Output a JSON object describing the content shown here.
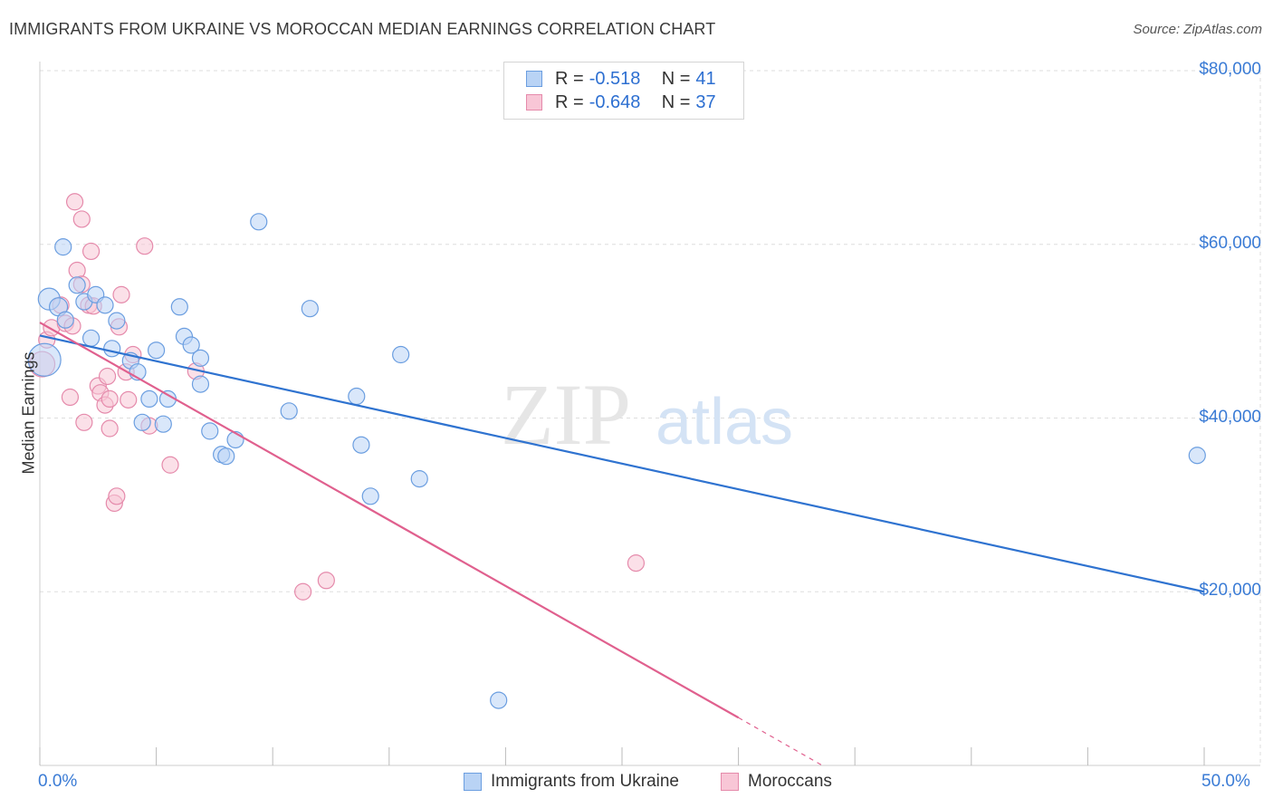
{
  "title": "IMMIGRANTS FROM UKRAINE VS MOROCCAN MEDIAN EARNINGS CORRELATION CHART",
  "source": "Source: ZipAtlas.com",
  "watermark": {
    "zip": "ZIP",
    "atlas": "atlas"
  },
  "legend_top": {
    "row1": {
      "r_label": "R = ",
      "r_value": "-0.518",
      "n_label": "N = ",
      "n_value": "41"
    },
    "row2": {
      "r_label": "R = ",
      "r_value": "-0.648",
      "n_label": "N = ",
      "n_value": "37"
    }
  },
  "colors": {
    "blue_fill": "#b9d3f5",
    "blue_stroke": "#6b9ee0",
    "blue_line": "#2f73d0",
    "pink_fill": "#f8c6d6",
    "pink_stroke": "#e58aab",
    "pink_line": "#e0608e",
    "axis_text": "#3a7bd5",
    "grid": "#dddddd"
  },
  "chart_data": {
    "type": "scatter",
    "title": "IMMIGRANTS FROM UKRAINE VS MOROCCAN MEDIAN EARNINGS CORRELATION CHART",
    "xlabel": "",
    "ylabel": "Median Earnings",
    "xlim": [
      0,
      50
    ],
    "ylim": [
      0,
      80000
    ],
    "x_tick_labels": {
      "min": "0.0%",
      "max": "50.0%"
    },
    "y_ticks": [
      {
        "value": 20000,
        "label": "$20,000"
      },
      {
        "value": 40000,
        "label": "$40,000"
      },
      {
        "value": 60000,
        "label": "$60,000"
      },
      {
        "value": 80000,
        "label": "$80,000"
      }
    ],
    "series": [
      {
        "name": "Immigrants from Ukraine",
        "color": "blue",
        "r": -0.518,
        "n": 41,
        "trend": {
          "x0": 0,
          "y0": 49500,
          "x1": 50,
          "y1": 20000
        },
        "points": [
          [
            0.2,
            46700,
            18
          ],
          [
            0.4,
            53700,
            12
          ],
          [
            0.8,
            52800,
            10
          ],
          [
            1.0,
            59700,
            9
          ],
          [
            1.1,
            51300,
            9
          ],
          [
            1.6,
            55300,
            9
          ],
          [
            1.9,
            53400,
            9
          ],
          [
            2.2,
            49200,
            9
          ],
          [
            2.4,
            54200,
            9
          ],
          [
            2.8,
            53000,
            9
          ],
          [
            3.1,
            48000,
            9
          ],
          [
            3.3,
            51200,
            9
          ],
          [
            3.9,
            46600,
            9
          ],
          [
            4.2,
            45300,
            9
          ],
          [
            4.4,
            39500,
            9
          ],
          [
            4.7,
            42200,
            9
          ],
          [
            5.0,
            47800,
            9
          ],
          [
            5.3,
            39300,
            9
          ],
          [
            5.5,
            42200,
            9
          ],
          [
            6.0,
            52800,
            9
          ],
          [
            6.2,
            49400,
            9
          ],
          [
            6.5,
            48400,
            9
          ],
          [
            6.9,
            46900,
            9
          ],
          [
            6.9,
            43900,
            9
          ],
          [
            7.3,
            38500,
            9
          ],
          [
            7.8,
            35800,
            9
          ],
          [
            8.0,
            35600,
            9
          ],
          [
            8.4,
            37500,
            9
          ],
          [
            9.4,
            62600,
            9
          ],
          [
            10.7,
            40800,
            9
          ],
          [
            11.6,
            52600,
            9
          ],
          [
            13.6,
            42500,
            9
          ],
          [
            13.8,
            36900,
            9
          ],
          [
            14.2,
            31000,
            9
          ],
          [
            15.5,
            47300,
            9
          ],
          [
            16.3,
            33000,
            9
          ],
          [
            19.7,
            7500,
            9
          ],
          [
            49.7,
            35700,
            9
          ]
        ]
      },
      {
        "name": "Moroccans",
        "color": "pink",
        "r": -0.648,
        "n": 37,
        "trend": {
          "x0": 0,
          "y0": 51000,
          "x1": 30,
          "y1": 5500
        },
        "trend_dashed": {
          "x0": 30,
          "y0": 5500,
          "x1": 33.6,
          "y1": 0
        },
        "points": [
          [
            0.1,
            46200,
            14
          ],
          [
            0.3,
            49000,
            9
          ],
          [
            0.5,
            50400,
            9
          ],
          [
            0.9,
            53000,
            9
          ],
          [
            1.1,
            50900,
            9
          ],
          [
            1.3,
            42400,
            9
          ],
          [
            1.4,
            50600,
            9
          ],
          [
            1.5,
            64900,
            9
          ],
          [
            1.6,
            57000,
            9
          ],
          [
            1.8,
            62900,
            9
          ],
          [
            1.8,
            55400,
            9
          ],
          [
            1.9,
            39500,
            9
          ],
          [
            2.1,
            53000,
            9
          ],
          [
            2.2,
            59200,
            9
          ],
          [
            2.3,
            52900,
            9
          ],
          [
            2.5,
            43700,
            9
          ],
          [
            2.6,
            42900,
            9
          ],
          [
            2.8,
            41500,
            9
          ],
          [
            2.9,
            44800,
            9
          ],
          [
            3.0,
            42200,
            9
          ],
          [
            3.0,
            38800,
            9
          ],
          [
            3.2,
            30200,
            9
          ],
          [
            3.3,
            31000,
            9
          ],
          [
            3.4,
            50500,
            9
          ],
          [
            3.5,
            54200,
            9
          ],
          [
            3.7,
            45300,
            9
          ],
          [
            3.8,
            42100,
            9
          ],
          [
            4.0,
            47300,
            9
          ],
          [
            4.5,
            59800,
            9
          ],
          [
            4.7,
            39100,
            9
          ],
          [
            5.6,
            34600,
            9
          ],
          [
            6.7,
            45400,
            9
          ],
          [
            11.3,
            20000,
            9
          ],
          [
            12.3,
            21300,
            9
          ],
          [
            25.6,
            23300,
            9
          ]
        ]
      }
    ]
  },
  "bottom_legend": {
    "item1": "Immigrants from Ukraine",
    "item2": "Moroccans"
  }
}
